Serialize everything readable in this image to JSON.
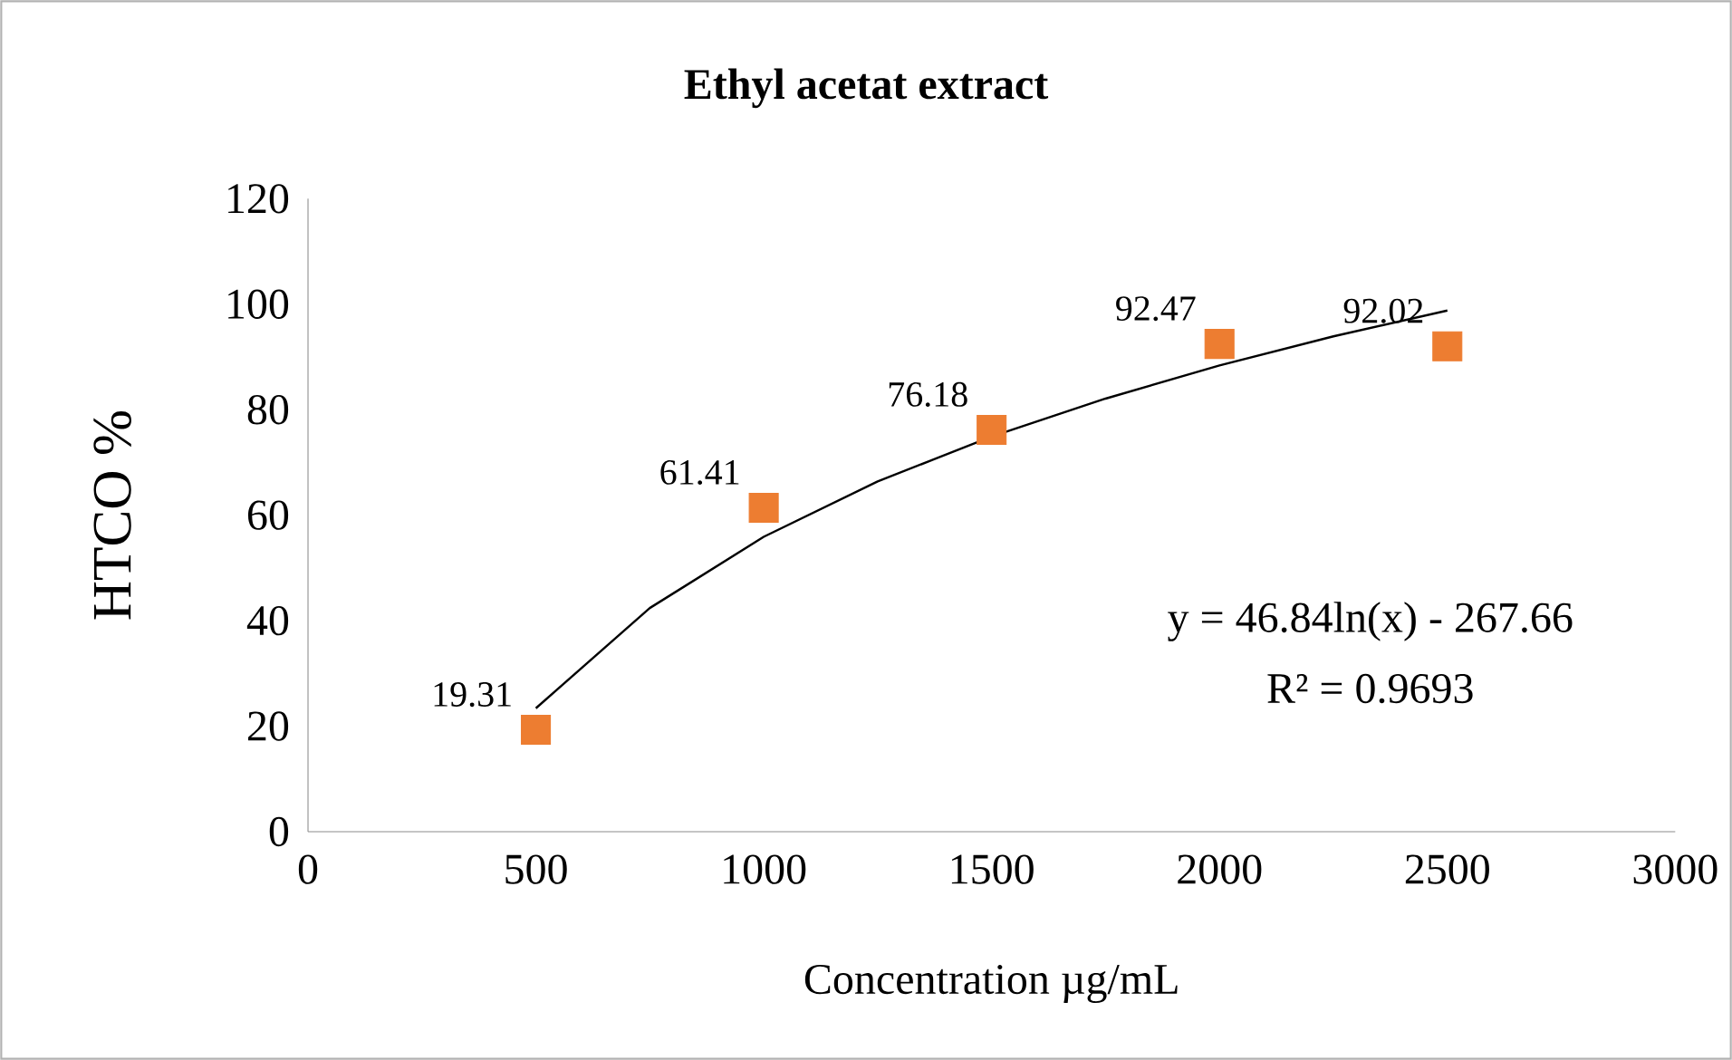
{
  "chart_data": {
    "type": "scatter",
    "title": "Ethyl acetat extract",
    "xlabel": "Concentration µg/mL",
    "ylabel": "HTCO  %",
    "x": [
      500,
      1000,
      1500,
      2000,
      2500
    ],
    "series": [
      {
        "color": "#ed7d31",
        "marker": "square",
        "values": [
          19.31,
          61.41,
          76.18,
          92.47,
          92.02
        ],
        "value_labels": [
          "19.31",
          "61.41",
          "76.18",
          "92.47",
          "92.02"
        ]
      },
      {
        "type": "line",
        "color": "#000000",
        "marker": "none",
        "x": [
          500,
          750,
          1000,
          1250,
          1500,
          1750,
          2000,
          2250,
          2500
        ],
        "values": [
          23.4,
          42.4,
          55.9,
          66.4,
          74.9,
          82.1,
          88.4,
          93.9,
          98.8
        ]
      }
    ],
    "xlim": [
      0,
      3000
    ],
    "xticks": [
      0,
      500,
      1000,
      1500,
      2000,
      2500,
      3000
    ],
    "ylim": [
      0,
      120
    ],
    "yticks": [
      0,
      20,
      40,
      60,
      80,
      100,
      120
    ],
    "annotations": [
      "y = 46.84ln(x) - 267.66",
      "R² = 0.9693"
    ]
  }
}
